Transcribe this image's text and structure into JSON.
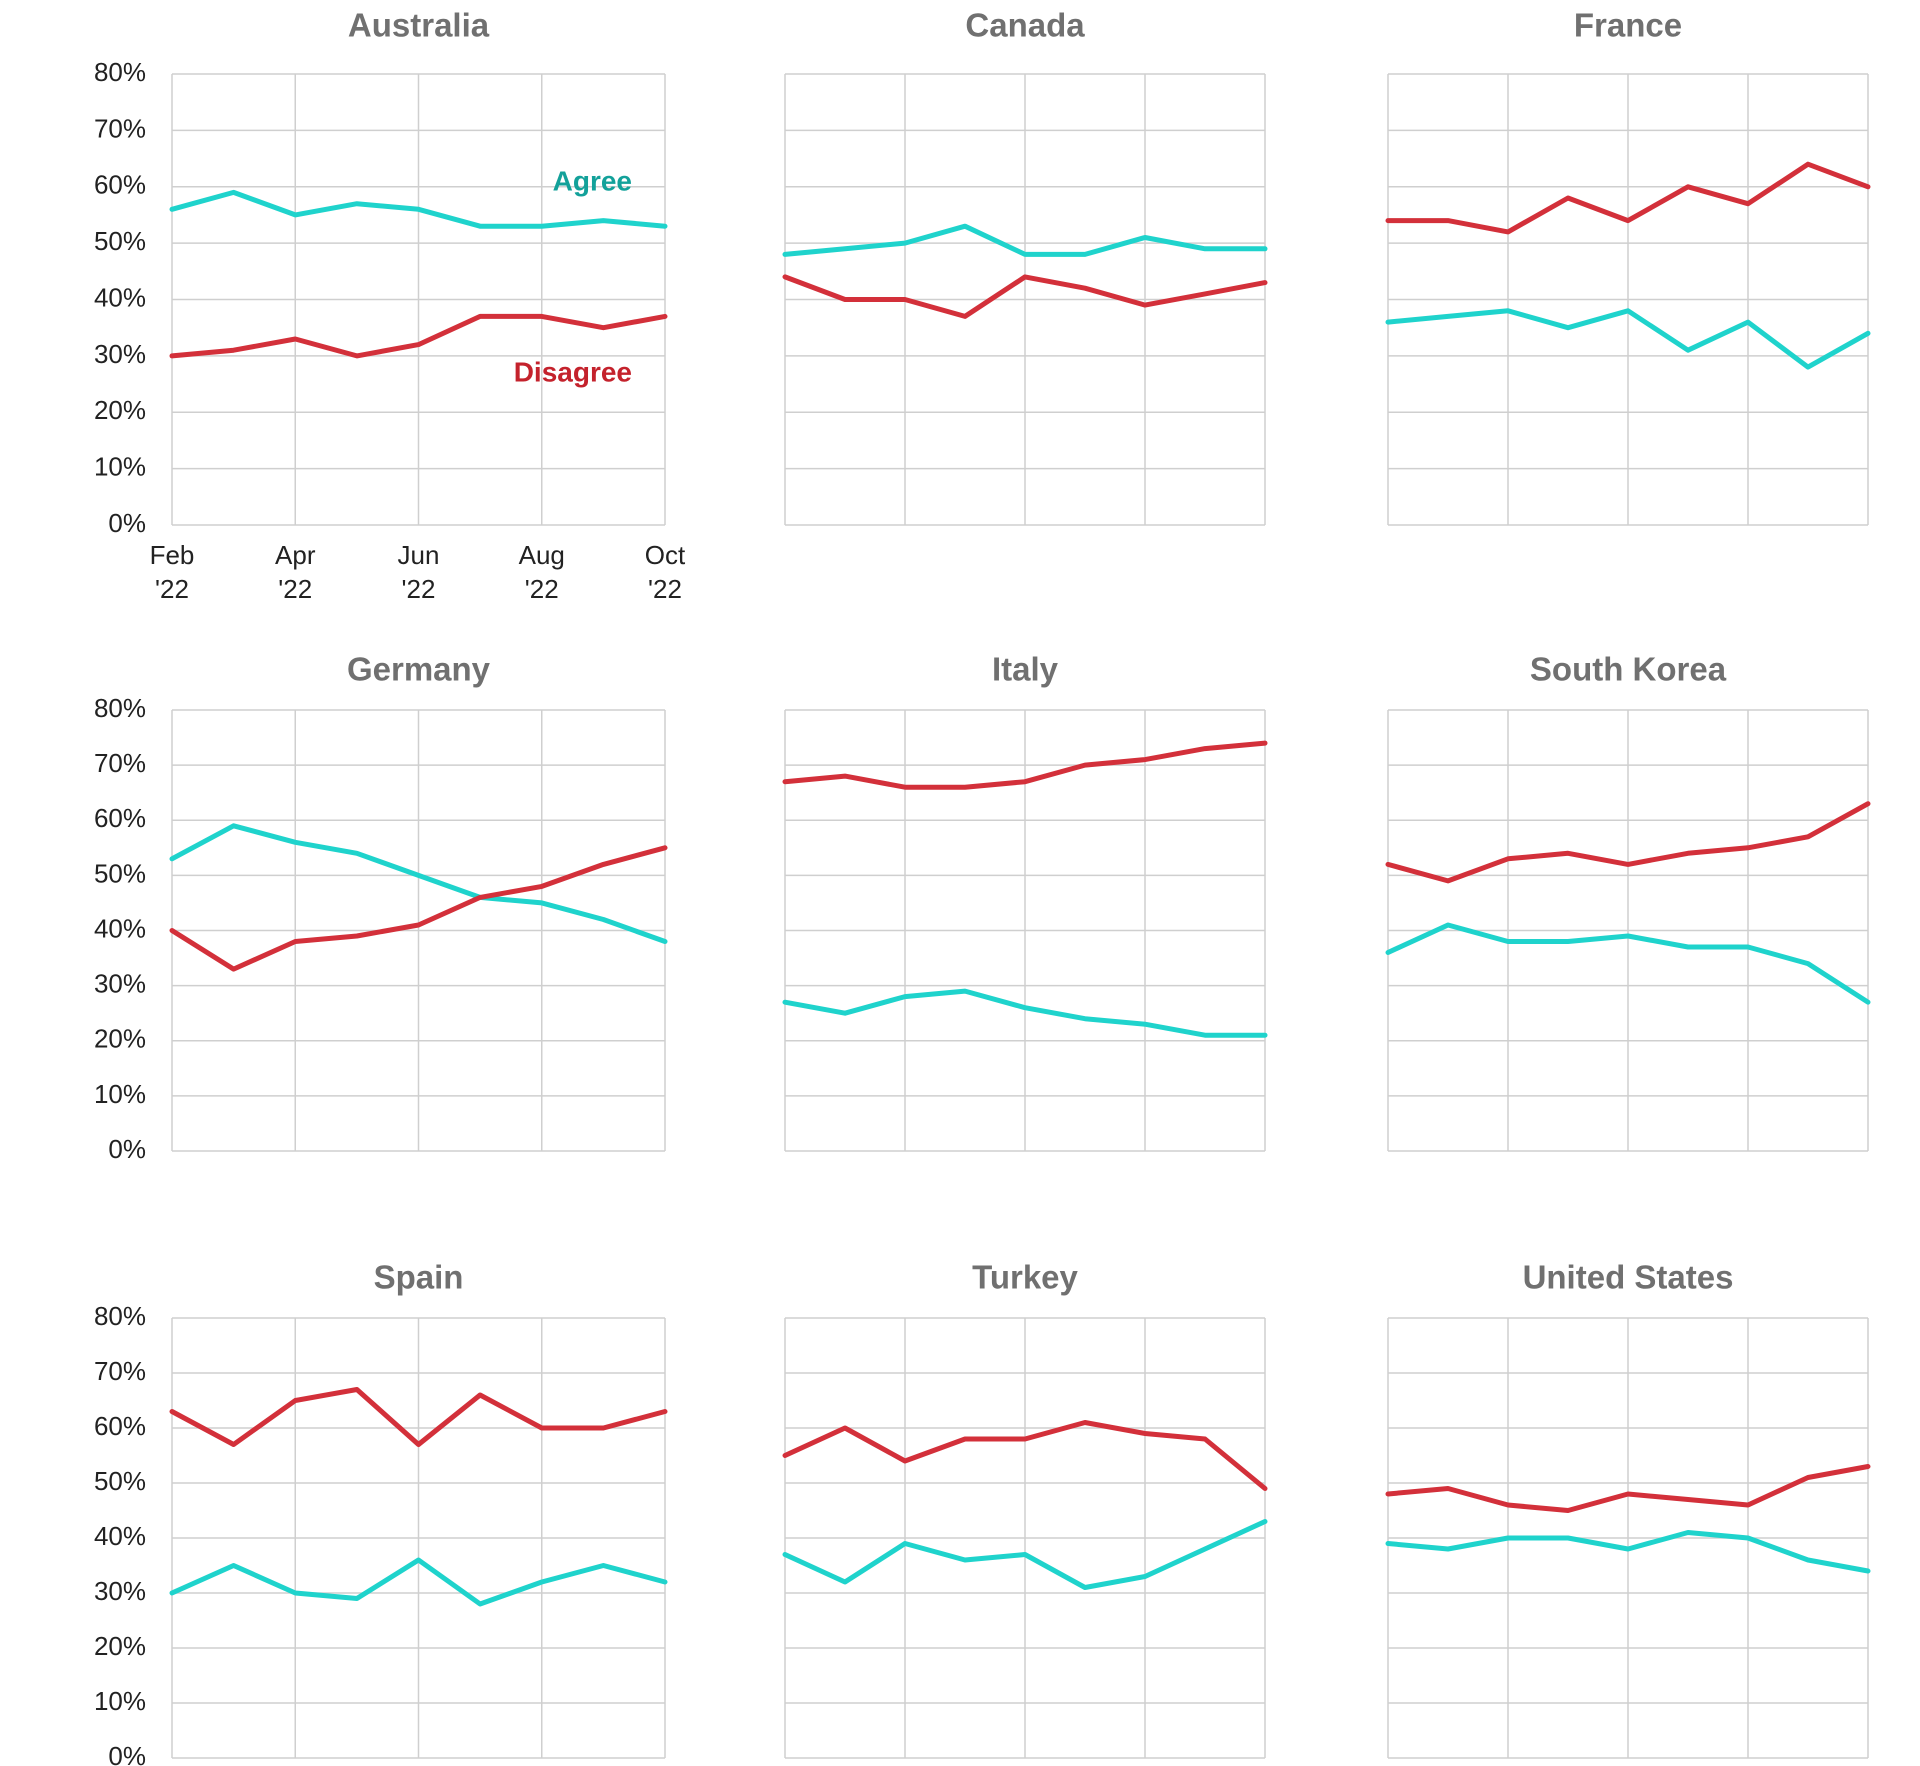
{
  "colors": {
    "agree": "#1fd3cc",
    "disagree": "#d3303a",
    "agree_label": "#13a19a",
    "disagree_label": "#c4222c",
    "grid": "#cfcfcf",
    "title": "#707070"
  },
  "chart_data": [
    {
      "type": "line",
      "title": "Australia",
      "x": [
        "Feb '22",
        "Mar '22",
        "Apr '22",
        "May '22",
        "Jun '22",
        "Jul '22",
        "Aug '22",
        "Sep '22",
        "Oct '22"
      ],
      "x_tick_labels": [
        [
          "Feb",
          "'22"
        ],
        [
          "Apr",
          "'22"
        ],
        [
          "Jun",
          "'22"
        ],
        [
          "Aug",
          "'22"
        ],
        [
          "Oct",
          "'22"
        ]
      ],
      "y_tick_labels": [
        "0%",
        "10%",
        "20%",
        "30%",
        "40%",
        "50%",
        "60%",
        "70%",
        "80%"
      ],
      "ylim": [
        0,
        80
      ],
      "grid": true,
      "series": [
        {
          "name": "Agree",
          "values": [
            56,
            59,
            55,
            57,
            56,
            53,
            53,
            54,
            53
          ]
        },
        {
          "name": "Disagree",
          "values": [
            30,
            31,
            33,
            30,
            32,
            37,
            37,
            35,
            37
          ]
        }
      ]
    },
    {
      "type": "line",
      "title": "Canada",
      "x": [
        "Feb '22",
        "Mar '22",
        "Apr '22",
        "May '22",
        "Jun '22",
        "Jul '22",
        "Aug '22",
        "Sep '22",
        "Oct '22"
      ],
      "ylim": [
        0,
        80
      ],
      "grid": true,
      "series": [
        {
          "name": "Agree",
          "values": [
            48,
            49,
            50,
            53,
            48,
            48,
            51,
            49,
            49
          ]
        },
        {
          "name": "Disagree",
          "values": [
            44,
            40,
            40,
            37,
            44,
            42,
            39,
            41,
            43
          ]
        }
      ]
    },
    {
      "type": "line",
      "title": "France",
      "x": [
        "Feb '22",
        "Mar '22",
        "Apr '22",
        "May '22",
        "Jun '22",
        "Jul '22",
        "Aug '22",
        "Sep '22",
        "Oct '22"
      ],
      "ylim": [
        0,
        80
      ],
      "grid": true,
      "series": [
        {
          "name": "Agree",
          "values": [
            36,
            37,
            38,
            35,
            38,
            31,
            36,
            28,
            34
          ]
        },
        {
          "name": "Disagree",
          "values": [
            54,
            54,
            52,
            58,
            54,
            60,
            57,
            64,
            60
          ]
        }
      ]
    },
    {
      "type": "line",
      "title": "Germany",
      "x": [
        "Feb '22",
        "Mar '22",
        "Apr '22",
        "May '22",
        "Jun '22",
        "Jul '22",
        "Aug '22",
        "Sep '22",
        "Oct '22"
      ],
      "y_tick_labels": [
        "0%",
        "10%",
        "20%",
        "30%",
        "40%",
        "50%",
        "60%",
        "70%",
        "80%"
      ],
      "ylim": [
        0,
        80
      ],
      "grid": true,
      "series": [
        {
          "name": "Agree",
          "values": [
            53,
            59,
            56,
            54,
            50,
            46,
            45,
            42,
            38
          ]
        },
        {
          "name": "Disagree",
          "values": [
            40,
            33,
            38,
            39,
            41,
            46,
            48,
            52,
            55
          ]
        }
      ]
    },
    {
      "type": "line",
      "title": "Italy",
      "x": [
        "Feb '22",
        "Mar '22",
        "Apr '22",
        "May '22",
        "Jun '22",
        "Jul '22",
        "Aug '22",
        "Sep '22",
        "Oct '22"
      ],
      "ylim": [
        0,
        80
      ],
      "grid": true,
      "series": [
        {
          "name": "Agree",
          "values": [
            27,
            25,
            28,
            29,
            26,
            24,
            23,
            21,
            21
          ]
        },
        {
          "name": "Disagree",
          "values": [
            67,
            68,
            66,
            66,
            67,
            70,
            71,
            73,
            74
          ]
        }
      ]
    },
    {
      "type": "line",
      "title": "South Korea",
      "x": [
        "Feb '22",
        "Mar '22",
        "Apr '22",
        "May '22",
        "Jun '22",
        "Jul '22",
        "Aug '22",
        "Sep '22",
        "Oct '22"
      ],
      "ylim": [
        0,
        80
      ],
      "grid": true,
      "series": [
        {
          "name": "Agree",
          "values": [
            36,
            41,
            38,
            38,
            39,
            37,
            37,
            34,
            27
          ]
        },
        {
          "name": "Disagree",
          "values": [
            52,
            49,
            53,
            54,
            52,
            54,
            55,
            57,
            63
          ]
        }
      ]
    },
    {
      "type": "line",
      "title": "Spain",
      "x": [
        "Feb '22",
        "Mar '22",
        "Apr '22",
        "May '22",
        "Jun '22",
        "Jul '22",
        "Aug '22",
        "Sep '22",
        "Oct '22"
      ],
      "y_tick_labels": [
        "0%",
        "10%",
        "20%",
        "30%",
        "40%",
        "50%",
        "60%",
        "70%",
        "80%"
      ],
      "ylim": [
        0,
        80
      ],
      "grid": true,
      "series": [
        {
          "name": "Agree",
          "values": [
            30,
            35,
            30,
            29,
            36,
            28,
            32,
            35,
            32
          ]
        },
        {
          "name": "Disagree",
          "values": [
            63,
            57,
            65,
            67,
            57,
            66,
            60,
            60,
            63
          ]
        }
      ]
    },
    {
      "type": "line",
      "title": "Turkey",
      "x": [
        "Feb '22",
        "Mar '22",
        "Apr '22",
        "May '22",
        "Jun '22",
        "Jul '22",
        "Aug '22",
        "Sep '22",
        "Oct '22"
      ],
      "ylim": [
        0,
        80
      ],
      "grid": true,
      "series": [
        {
          "name": "Agree",
          "values": [
            37,
            32,
            39,
            36,
            37,
            31,
            33,
            38,
            43
          ]
        },
        {
          "name": "Disagree",
          "values": [
            55,
            60,
            54,
            58,
            58,
            61,
            59,
            58,
            49
          ]
        }
      ]
    },
    {
      "type": "line",
      "title": "United States",
      "x": [
        "Feb '22",
        "Mar '22",
        "Apr '22",
        "May '22",
        "Jun '22",
        "Jul '22",
        "Aug '22",
        "Sep '22",
        "Oct '22"
      ],
      "ylim": [
        0,
        80
      ],
      "grid": true,
      "series": [
        {
          "name": "Agree",
          "values": [
            39,
            38,
            40,
            40,
            38,
            41,
            40,
            36,
            34
          ]
        },
        {
          "name": "Disagree",
          "values": [
            48,
            49,
            46,
            45,
            48,
            47,
            46,
            51,
            53
          ]
        }
      ]
    }
  ]
}
